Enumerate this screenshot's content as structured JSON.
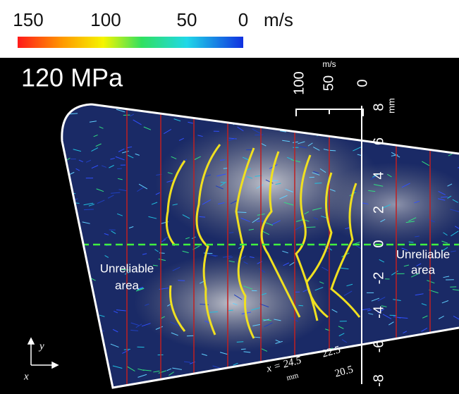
{
  "colorbar": {
    "ticks": [
      "150",
      "100",
      "50",
      "0"
    ],
    "unit": "m/s"
  },
  "panel": {
    "label": "120 MPa",
    "velocity_scale": {
      "ticks": [
        "100",
        "50",
        "0"
      ],
      "unit": "m/s"
    },
    "mm_axis": {
      "ticks": [
        "8",
        "6",
        "4",
        "2",
        "0",
        "-2",
        "-4",
        "-6",
        "-8"
      ],
      "unit": "mm"
    },
    "unreliable_left": [
      "Unreliable",
      "area"
    ],
    "unreliable_right": [
      "Unreliable",
      "area"
    ],
    "stations": {
      "first": "x = 24.5",
      "unit": "mm",
      "second": "22.5",
      "third": "20.5"
    },
    "axes": {
      "x": "x",
      "y": "y"
    }
  }
}
